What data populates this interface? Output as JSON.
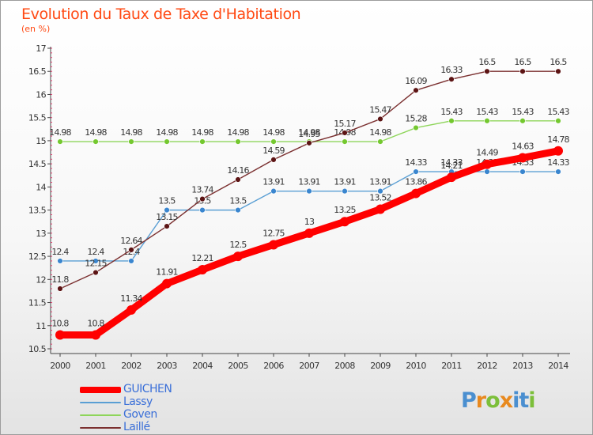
{
  "header": {
    "title": "Evolution du Taux de Taxe d'Habitation",
    "subtitle": "(en %)"
  },
  "logo": {
    "letters": [
      "P",
      "r",
      "o",
      "x",
      "i",
      "t",
      "i"
    ],
    "colors": [
      "#4a8fd0",
      "#e8891e",
      "#7cbf3a",
      "#e8891e",
      "#4a8fd0",
      "#4a8fd0",
      "#7cbf3a"
    ]
  },
  "chart_data": {
    "type": "line",
    "title": "Evolution du Taux de Taxe d'Habitation",
    "ylabel": "(en %)",
    "xlabel": "",
    "x": [
      "2000",
      "2001",
      "2002",
      "2003",
      "2004",
      "2005",
      "2006",
      "2007",
      "2008",
      "2009",
      "2010",
      "2011",
      "2012",
      "2013",
      "2014"
    ],
    "ylim": [
      10.5,
      17
    ],
    "yticks": [
      "10.5",
      "11",
      "11.5",
      "12",
      "12.5",
      "13",
      "13.5",
      "14",
      "14.5",
      "15",
      "15.5",
      "16",
      "16.5",
      "17"
    ],
    "grid": false,
    "legend_position": "bottom-left",
    "series": [
      {
        "name": "GUICHEN",
        "color": "#ff0000",
        "thick": true,
        "values": [
          10.8,
          10.8,
          11.34,
          11.91,
          12.21,
          12.5,
          12.75,
          13,
          13.25,
          13.52,
          13.86,
          14.21,
          14.49,
          14.63,
          14.78
        ],
        "labels": [
          "10.8",
          "10.8",
          "11.34",
          "11.91",
          "12.21",
          "12.5",
          "12.75",
          "13",
          "13.25",
          "13.52",
          "13.86",
          "14.21",
          "14.49",
          "14.63",
          "14.78"
        ]
      },
      {
        "name": "Lassy",
        "color": "#5a9fd4",
        "marker": "#3a86cf",
        "thick": false,
        "values": [
          12.4,
          12.4,
          12.4,
          13.5,
          13.5,
          13.5,
          13.91,
          13.91,
          13.91,
          13.91,
          14.33,
          14.33,
          14.33,
          14.33,
          14.33
        ],
        "labels": [
          "12.4",
          "12.4",
          "12.4",
          "13.5",
          "13.5",
          "13.5",
          "13.91",
          "13.91",
          "13.91",
          "13.91",
          "14.33",
          "14.33",
          "14.33",
          "14.33",
          "14.33"
        ]
      },
      {
        "name": "Goven",
        "color": "#8ed55a",
        "marker": "#74c82f",
        "thick": false,
        "values": [
          14.98,
          14.98,
          14.98,
          14.98,
          14.98,
          14.98,
          14.98,
          14.98,
          14.98,
          14.98,
          15.28,
          15.43,
          15.43,
          15.43,
          15.43
        ],
        "labels": [
          "14.98",
          "14.98",
          "14.98",
          "14.98",
          "14.98",
          "14.98",
          "14.98",
          "14.98",
          "14.98",
          "14.98",
          "15.28",
          "15.43",
          "15.43",
          "15.43",
          "15.43"
        ]
      },
      {
        "name": "Laillé",
        "color": "#7b3030",
        "marker": "#5c1414",
        "thick": false,
        "values": [
          11.8,
          12.15,
          12.64,
          13.15,
          13.74,
          14.16,
          14.59,
          14.95,
          15.17,
          15.47,
          16.09,
          16.33,
          16.5,
          16.5,
          16.5
        ],
        "labels": [
          "11.8",
          "12.15",
          "12.64",
          "13.15",
          "13.74",
          "14.16",
          "14.59",
          "14.95",
          "15.17",
          "15.47",
          "16.09",
          "16.33",
          "16.5",
          "16.5",
          "16.5"
        ]
      }
    ]
  }
}
